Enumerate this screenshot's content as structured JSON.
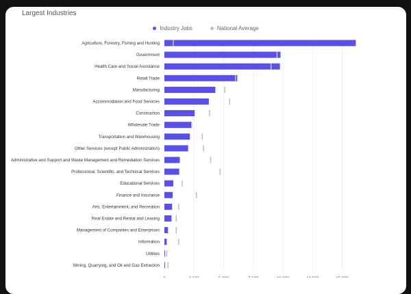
{
  "title": "Largest Industries",
  "legend": [
    {
      "label": "Industry Jobs",
      "color": "#5a4fe6"
    },
    {
      "label": "National Average",
      "color": "#bfbfbf"
    }
  ],
  "chart_data": {
    "type": "bar",
    "orientation": "horizontal",
    "title": "Largest Industries",
    "legend_position": "top-center",
    "grid": true,
    "xlim": [
      0,
      20000
    ],
    "xticks": [
      0,
      2500,
      5000,
      7500,
      10000,
      12500,
      15000
    ],
    "xtick_labels": [
      "0",
      "2,500",
      "5,000",
      "7,500",
      "10,000",
      "12,500",
      "15,000"
    ],
    "categories": [
      "Agriculture, Forestry, Fishing and Hunting",
      "Government",
      "Health Care and Social Assistance",
      "Retail Trade",
      "Manufacturing",
      "Accommodation and Food Services",
      "Construction",
      "Wholesale Trade",
      "Transportation and Warehousing",
      "Other Services (except Public Administration)",
      "Administrative and Support and Waste Management and Remediation Services",
      "Professional, Scientific, and Technical Services",
      "Educational Services",
      "Finance and Insurance",
      "Arts, Entertainment, and Recreation",
      "Real Estate and Rental and Leasing",
      "Management of Companies and Enterprises",
      "Information",
      "Utilities",
      "Mining, Quarrying, and Oil and Gas Extraction"
    ],
    "series": [
      {
        "name": "Industry Jobs",
        "color": "#5a4fe6",
        "values": [
          16150,
          9800,
          9750,
          6150,
          4300,
          3750,
          2550,
          2300,
          2150,
          2000,
          1300,
          1250,
          750,
          700,
          650,
          600,
          300,
          200,
          60,
          50
        ]
      },
      {
        "name": "National Average",
        "color": "#bfbfbf",
        "values": [
          750,
          9500,
          9000,
          6000,
          5100,
          5500,
          3800,
          2300,
          3200,
          3300,
          3900,
          4700,
          1500,
          2700,
          1200,
          1000,
          1000,
          1200,
          200,
          300
        ]
      }
    ]
  }
}
